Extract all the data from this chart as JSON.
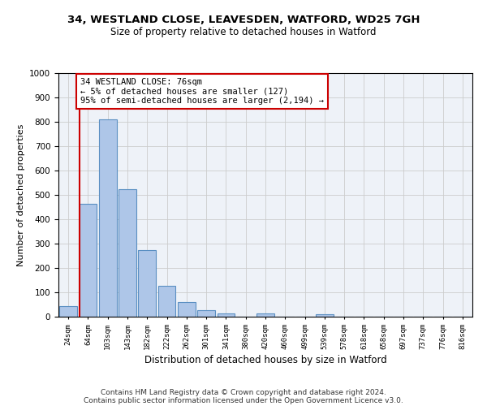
{
  "title_line1": "34, WESTLAND CLOSE, LEAVESDEN, WATFORD, WD25 7GH",
  "title_line2": "Size of property relative to detached houses in Watford",
  "xlabel": "Distribution of detached houses by size in Watford",
  "ylabel": "Number of detached properties",
  "categories": [
    "24sqm",
    "64sqm",
    "103sqm",
    "143sqm",
    "182sqm",
    "222sqm",
    "262sqm",
    "301sqm",
    "341sqm",
    "380sqm",
    "420sqm",
    "460sqm",
    "499sqm",
    "539sqm",
    "578sqm",
    "618sqm",
    "658sqm",
    "697sqm",
    "737sqm",
    "776sqm",
    "816sqm"
  ],
  "values": [
    45,
    462,
    810,
    522,
    275,
    127,
    60,
    27,
    15,
    0,
    15,
    0,
    0,
    10,
    0,
    0,
    0,
    0,
    0,
    0,
    0
  ],
  "bar_color": "#aec6e8",
  "bar_edge_color": "#5a8fc2",
  "grid_color": "#cccccc",
  "bg_color": "#eef2f8",
  "vline_color": "#cc0000",
  "annotation_text": "34 WESTLAND CLOSE: 76sqm\n← 5% of detached houses are smaller (127)\n95% of semi-detached houses are larger (2,194) →",
  "annotation_box_color": "#cc0000",
  "footnote_line1": "Contains HM Land Registry data © Crown copyright and database right 2024.",
  "footnote_line2": "Contains public sector information licensed under the Open Government Licence v3.0.",
  "ylim": [
    0,
    1000
  ],
  "yticks": [
    0,
    100,
    200,
    300,
    400,
    500,
    600,
    700,
    800,
    900,
    1000
  ],
  "vline_x_index": 1
}
